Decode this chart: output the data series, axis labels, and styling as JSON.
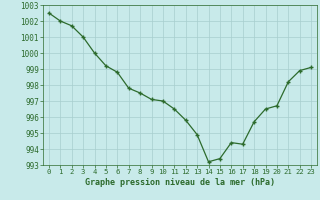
{
  "x": [
    0,
    1,
    2,
    3,
    4,
    5,
    6,
    7,
    8,
    9,
    10,
    11,
    12,
    13,
    14,
    15,
    16,
    17,
    18,
    19,
    20,
    21,
    22,
    23
  ],
  "y": [
    1002.5,
    1002.0,
    1001.7,
    1001.0,
    1000.0,
    999.2,
    998.8,
    997.8,
    997.5,
    997.1,
    997.0,
    996.5,
    995.8,
    994.9,
    993.2,
    993.4,
    994.4,
    994.3,
    995.7,
    996.5,
    996.7,
    998.2,
    998.9,
    999.1
  ],
  "line_color": "#2d6b2d",
  "marker": "+",
  "bg_color": "#c8eaea",
  "grid_color": "#a8cece",
  "xlabel": "Graphe pression niveau de la mer (hPa)",
  "xlabel_color": "#2d6b2d",
  "tick_color": "#2d6b2d",
  "ylim": [
    993,
    1003
  ],
  "xlim": [
    -0.5,
    23.5
  ],
  "yticks": [
    993,
    994,
    995,
    996,
    997,
    998,
    999,
    1000,
    1001,
    1002,
    1003
  ],
  "xticks": [
    0,
    1,
    2,
    3,
    4,
    5,
    6,
    7,
    8,
    9,
    10,
    11,
    12,
    13,
    14,
    15,
    16,
    17,
    18,
    19,
    20,
    21,
    22,
    23
  ]
}
